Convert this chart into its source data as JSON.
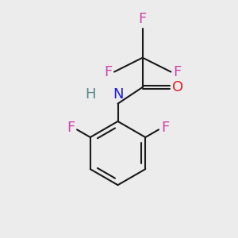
{
  "background_color": "#ececec",
  "bond_color": "#1a1a1a",
  "atom_colors": {
    "F": "#cc44aa",
    "N": "#1a1add",
    "H": "#558888",
    "O": "#dd2222"
  },
  "figsize": [
    3.0,
    3.0
  ],
  "dpi": 100,
  "xlim": [
    0,
    10
  ],
  "ylim": [
    0,
    10
  ]
}
